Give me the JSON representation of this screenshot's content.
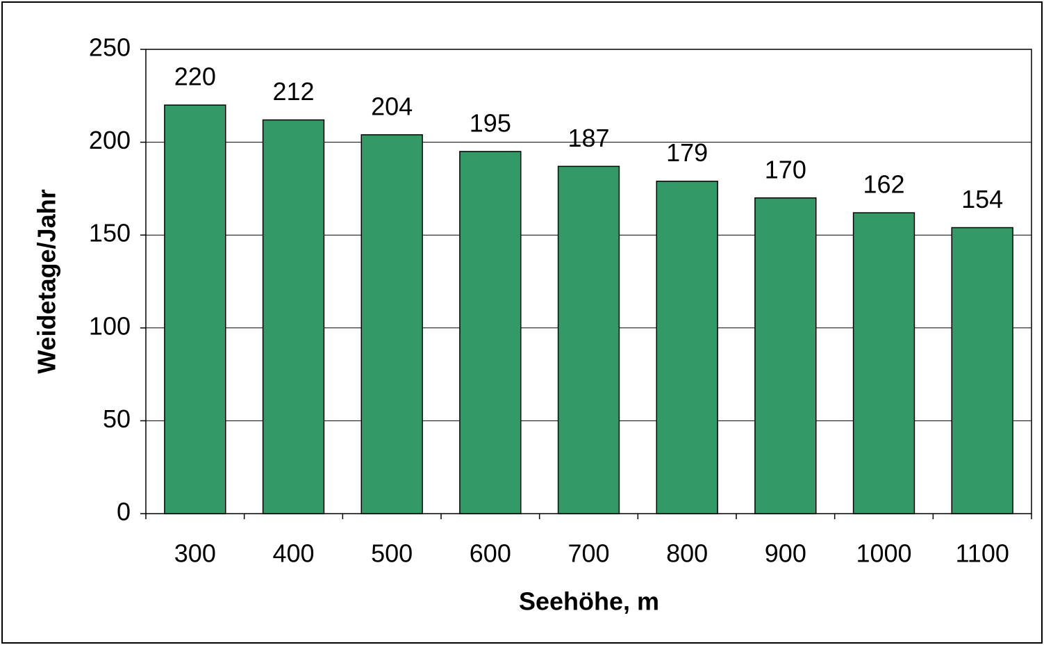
{
  "chart_data": {
    "type": "bar",
    "x_label": "Seehöhe, m",
    "y_label": "Weidetage/Jahr",
    "categories": [
      "300",
      "400",
      "500",
      "600",
      "700",
      "800",
      "900",
      "1000",
      "1100"
    ],
    "values": [
      220,
      212,
      204,
      195,
      187,
      179,
      170,
      162,
      154
    ],
    "color": "#339966",
    "ylim": [
      0,
      250
    ],
    "yticks": [
      0,
      50,
      100,
      150,
      200,
      250
    ],
    "grid": true
  }
}
